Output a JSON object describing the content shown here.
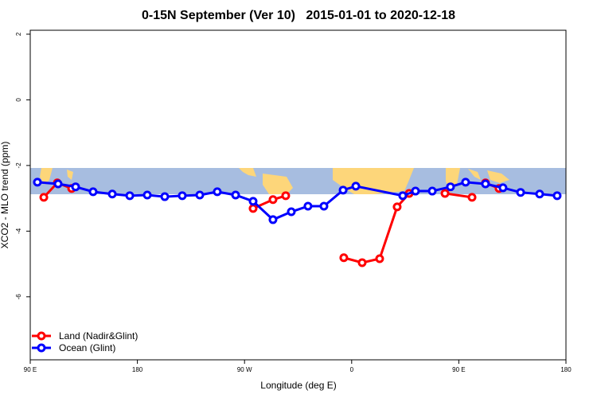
{
  "chart_data": {
    "type": "line",
    "title": "0-15N September (Ver 10)   2015-01-01 to 2020-12-18",
    "x_label": "Longitude (deg E)",
    "y_label": "XCO2 - MLO trend (ppm)",
    "xlim": [
      90,
      540
    ],
    "xticks": [
      {
        "value": 90,
        "label": "90 E"
      },
      180,
      {
        "value": 270,
        "label": "90 W"
      },
      {
        "value": 360,
        "label": "0"
      },
      {
        "value": 450,
        "label": "90 E"
      },
      {
        "value": 540,
        "label": "180"
      }
    ],
    "ylim": [
      -7.92,
      2.12
    ],
    "yticks": [
      -6,
      -4,
      -2,
      0,
      2
    ],
    "legend": "bottom-left",
    "series": [
      {
        "name": "Land (Nadir&Glint)",
        "color": "#ff0000",
        "x": [
          101.4,
          112.7,
          124.8,
          null,
          277.2,
          293.9,
          304.6,
          null,
          353.4,
          368.8,
          383.5,
          398.2,
          408.3,
          null,
          438.4,
          461.1,
          null,
          472.4,
          483.8
        ],
        "values": [
          -2.97,
          -2.53,
          -2.7,
          null,
          -3.31,
          -3.04,
          -2.92,
          null,
          -4.81,
          -4.96,
          -4.84,
          -3.26,
          -2.85,
          null,
          -2.85,
          -2.97,
          null,
          -2.53,
          -2.7
        ]
      },
      {
        "name": "Ocean (Glint)",
        "color": "#0000ff",
        "x": [
          96.0,
          113.4,
          128.1,
          142.8,
          158.9,
          173.6,
          188.3,
          203.0,
          217.7,
          232.4,
          247.1,
          262.5,
          277.2,
          293.9,
          309.3,
          323.3,
          336.7,
          352.8,
          363.5,
          402.9,
          413.6,
          427.7,
          443.0,
          455.7,
          472.4,
          487.1,
          501.9,
          517.9,
          532.6
        ],
        "values": [
          -2.51,
          -2.56,
          -2.65,
          -2.8,
          -2.87,
          -2.92,
          -2.9,
          -2.95,
          -2.92,
          -2.9,
          -2.8,
          -2.9,
          -3.09,
          -3.65,
          -3.41,
          -3.24,
          -3.24,
          -2.75,
          -2.63,
          -2.92,
          -2.78,
          -2.78,
          -2.65,
          -2.51,
          -2.56,
          -2.68,
          -2.82,
          -2.87,
          -2.92
        ]
      }
    ]
  }
}
